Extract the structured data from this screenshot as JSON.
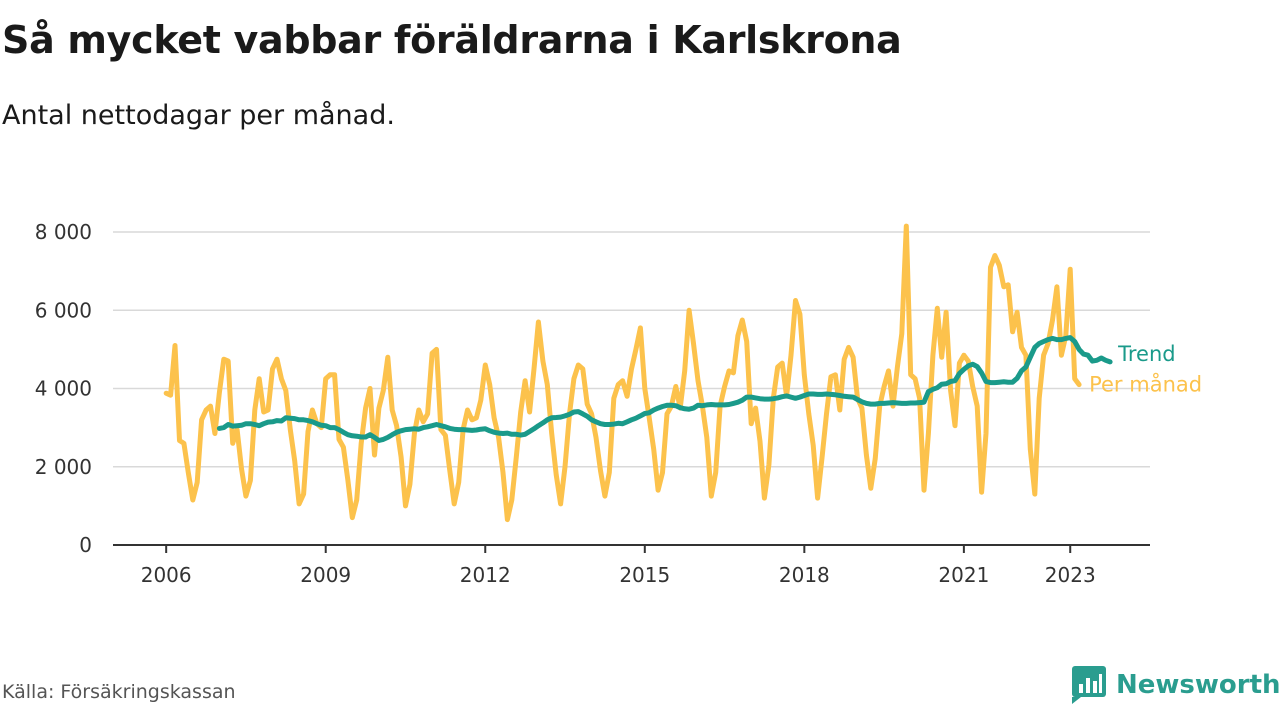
{
  "title": "Så mycket vabbar föräldrarna i Karlskrona",
  "subtitle": "Antal nettodagar per månad.",
  "source": "Källa: Försäkringskassan",
  "brand": {
    "name": "Newsworthy",
    "icon": "newsworthy-logo-icon",
    "color": "#2a9d8f"
  },
  "chart_data": {
    "type": "line",
    "x_start": 2006.0,
    "x_step_months": 1,
    "ylim": [
      0,
      8000
    ],
    "yticks": [
      0,
      2000,
      4000,
      6000,
      8000
    ],
    "ytick_labels": [
      "0",
      "2 000",
      "4 000",
      "6 000",
      "8 000"
    ],
    "xticks": [
      2006,
      2009,
      2012,
      2015,
      2018,
      2021,
      2023
    ],
    "xtick_labels": [
      "2006",
      "2009",
      "2012",
      "2015",
      "2018",
      "2021",
      "2023"
    ],
    "grid": true,
    "series": [
      {
        "name": "Per månad",
        "color": "#fcc24c",
        "values": [
          3880,
          3830,
          5100,
          2670,
          2600,
          1850,
          1150,
          1600,
          3200,
          3450,
          3550,
          2850,
          3900,
          4750,
          4700,
          2600,
          2950,
          1950,
          1250,
          1650,
          3450,
          4250,
          3400,
          3450,
          4500,
          4750,
          4250,
          3950,
          2950,
          2150,
          1050,
          1300,
          2900,
          3450,
          3100,
          3000,
          4250,
          4350,
          4350,
          2700,
          2500,
          1650,
          700,
          1150,
          2600,
          3500,
          4000,
          2300,
          3500,
          3950,
          4800,
          3450,
          3050,
          2250,
          1000,
          1550,
          2850,
          3450,
          3150,
          3350,
          4900,
          5000,
          2950,
          2800,
          1900,
          1050,
          1600,
          2950,
          3450,
          3200,
          3250,
          3700,
          4600,
          4100,
          3250,
          2750,
          1850,
          650,
          1150,
          2250,
          3400,
          4200,
          3400,
          4500,
          5700,
          4700,
          4100,
          2850,
          1800,
          1050,
          2000,
          3350,
          4250,
          4600,
          4500,
          3600,
          3350,
          2750,
          1900,
          1250,
          1850,
          3750,
          4100,
          4200,
          3800,
          4500,
          5000,
          5550,
          4000,
          3250,
          2450,
          1400,
          1850,
          3350,
          3550,
          4050,
          3500,
          4450,
          6000,
          5150,
          4200,
          3550,
          2750,
          1250,
          1850,
          3550,
          4050,
          4450,
          4400,
          5350,
          5750,
          5200,
          3100,
          3500,
          2650,
          1200,
          2050,
          3750,
          4550,
          4650,
          3800,
          4850,
          6250,
          5900,
          4350,
          3350,
          2550,
          1200,
          2250,
          3350,
          4300,
          4350,
          3450,
          4750,
          5050,
          4800,
          3750,
          3500,
          2300,
          1450,
          2200,
          3550,
          4050,
          4450,
          3550,
          4550,
          5400,
          8150,
          4350,
          4250,
          3750,
          1400,
          2850,
          4850,
          6050,
          4800,
          5950,
          3950,
          3050,
          4650,
          4850,
          4700,
          4050,
          3550,
          1350,
          2850,
          7100,
          7400,
          7150,
          6600,
          6650,
          5450,
          5950,
          5050,
          4850,
          2450,
          1300,
          3750,
          4850,
          5150,
          5750,
          6600,
          4850,
          5350,
          7050,
          4250,
          4100
        ]
      },
      {
        "name": "Trend",
        "color": "#1a9a8a",
        "start_index": 12,
        "values": [
          2980,
          3000,
          3080,
          3040,
          3050,
          3060,
          3100,
          3100,
          3080,
          3050,
          3100,
          3140,
          3150,
          3180,
          3170,
          3250,
          3240,
          3230,
          3200,
          3200,
          3180,
          3150,
          3100,
          3060,
          3050,
          3000,
          3000,
          2950,
          2880,
          2820,
          2790,
          2780,
          2760,
          2760,
          2820,
          2750,
          2670,
          2700,
          2750,
          2820,
          2880,
          2920,
          2950,
          2960,
          2970,
          2960,
          3000,
          3020,
          3050,
          3080,
          3050,
          3020,
          2980,
          2960,
          2950,
          2950,
          2940,
          2930,
          2940,
          2960,
          2970,
          2920,
          2880,
          2860,
          2850,
          2860,
          2830,
          2830,
          2810,
          2830,
          2900,
          2970,
          3050,
          3120,
          3200,
          3250,
          3260,
          3270,
          3300,
          3340,
          3400,
          3410,
          3350,
          3290,
          3200,
          3150,
          3100,
          3080,
          3080,
          3090,
          3110,
          3100,
          3150,
          3200,
          3240,
          3300,
          3360,
          3380,
          3450,
          3500,
          3540,
          3570,
          3570,
          3560,
          3510,
          3480,
          3470,
          3500,
          3570,
          3560,
          3580,
          3590,
          3580,
          3580,
          3580,
          3590,
          3620,
          3650,
          3700,
          3780,
          3780,
          3760,
          3740,
          3730,
          3730,
          3740,
          3760,
          3790,
          3810,
          3780,
          3750,
          3780,
          3820,
          3860,
          3860,
          3850,
          3850,
          3860,
          3850,
          3840,
          3820,
          3800,
          3790,
          3780,
          3720,
          3660,
          3620,
          3600,
          3600,
          3620,
          3620,
          3630,
          3640,
          3630,
          3620,
          3620,
          3630,
          3630,
          3640,
          3650,
          3920,
          3980,
          4020,
          4110,
          4120,
          4180,
          4200,
          4380,
          4490,
          4580,
          4620,
          4560,
          4400,
          4180,
          4150,
          4150,
          4160,
          4170,
          4160,
          4160,
          4260,
          4450,
          4550,
          4800,
          5050,
          5150,
          5200,
          5250,
          5280,
          5250,
          5250,
          5280,
          5300,
          5200,
          5000,
          4880,
          4850,
          4700,
          4720,
          4780,
          4720,
          4680
        ]
      }
    ],
    "series_labels": [
      "Trend",
      "Per månad"
    ]
  }
}
